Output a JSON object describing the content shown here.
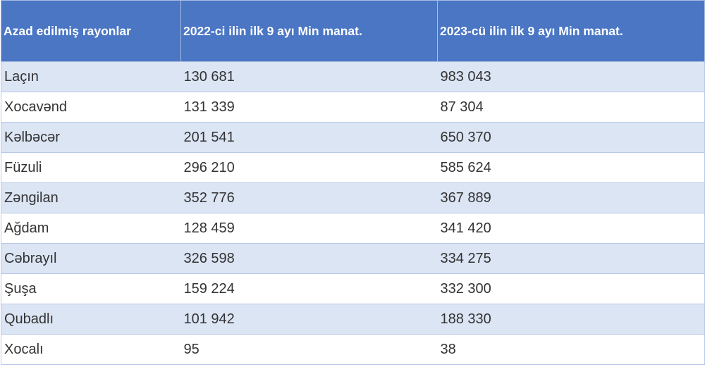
{
  "table": {
    "header": [
      "Azad edilmiş rayonlar",
      "2022-ci ilin ilk 9 ayı Min manat.",
      "2023-cü ilin ilk 9 ayı Min manat."
    ],
    "rows": [
      [
        "Laçın",
        "130 681",
        "983 043"
      ],
      [
        "Xocavənd",
        "131 339",
        "87 304"
      ],
      [
        "Kəlbəcər",
        "201 541",
        "650 370"
      ],
      [
        "Füzuli",
        "296 210",
        "585 624"
      ],
      [
        "Zəngilan",
        "352 776",
        "367 889"
      ],
      [
        "Ağdam",
        "128 459",
        "341 420"
      ],
      [
        "Cəbrayıl",
        "326 598",
        "334 275"
      ],
      [
        "Şuşa",
        "159 224",
        "332 300"
      ],
      [
        "Qubadlı",
        "101 942",
        "188 330"
      ],
      [
        "Xocalı",
        "95",
        "38"
      ]
    ]
  }
}
